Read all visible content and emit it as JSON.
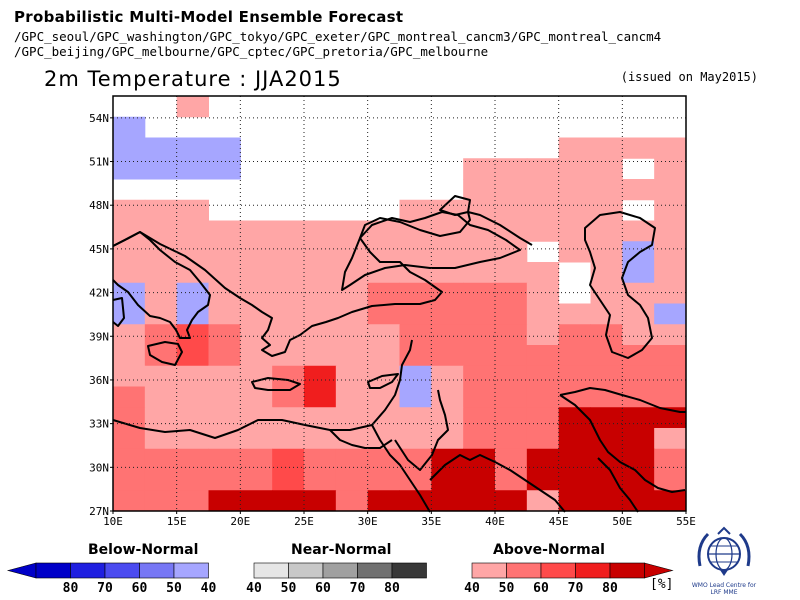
{
  "header": {
    "line1": "Probabilistic Multi-Model Ensemble Forecast",
    "line2": "/GPC_seoul/GPC_washington/GPC_tokyo/GPC_exeter/GPC_montreal_cancm3/GPC_montreal_cancm4",
    "line3": "/GPC_beijing/GPC_melbourne/GPC_cptec/GPC_pretoria/GPC_melbourne",
    "title": "2m Temperature : JJA2015",
    "issued": "(issued on May2015)"
  },
  "map": {
    "lat_labels": [
      "54N",
      "51N",
      "48N",
      "45N",
      "42N",
      "39N",
      "36N",
      "33N",
      "30N",
      "27N"
    ],
    "lon_labels": [
      "10E",
      "15E",
      "20E",
      "25E",
      "30E",
      "35E",
      "40E",
      "45E",
      "50E",
      "55E"
    ]
  },
  "legend": {
    "below": {
      "label": "Below-Normal",
      "ticks": [
        "80",
        "70",
        "60",
        "50",
        "40"
      ],
      "colors": [
        "#0000c8",
        "#1f1fe0",
        "#4b4bf0",
        "#7777f5",
        "#a6a6ff"
      ]
    },
    "near": {
      "label": "Near-Normal",
      "ticks": [
        "40",
        "50",
        "60",
        "70",
        "80"
      ],
      "colors": [
        "#e6e6e6",
        "#c8c8c8",
        "#a0a0a0",
        "#707070",
        "#383838"
      ]
    },
    "above": {
      "label": "Above-Normal",
      "ticks": [
        "40",
        "50",
        "60",
        "70",
        "80"
      ],
      "colors": [
        "#ffa6a6",
        "#ff7373",
        "#ff4a4a",
        "#f01e1e",
        "#c80000"
      ]
    },
    "unit": "[%]"
  },
  "logo": {
    "line1": "WMO Lead Centre for",
    "line2": "LRF MME"
  },
  "palette": {
    "above40": "#ffa6a6",
    "above50": "#ff7373",
    "above60": "#ff4a4a",
    "above70": "#f01e1e",
    "above80": "#c80000",
    "below40": "#a6a6ff"
  }
}
